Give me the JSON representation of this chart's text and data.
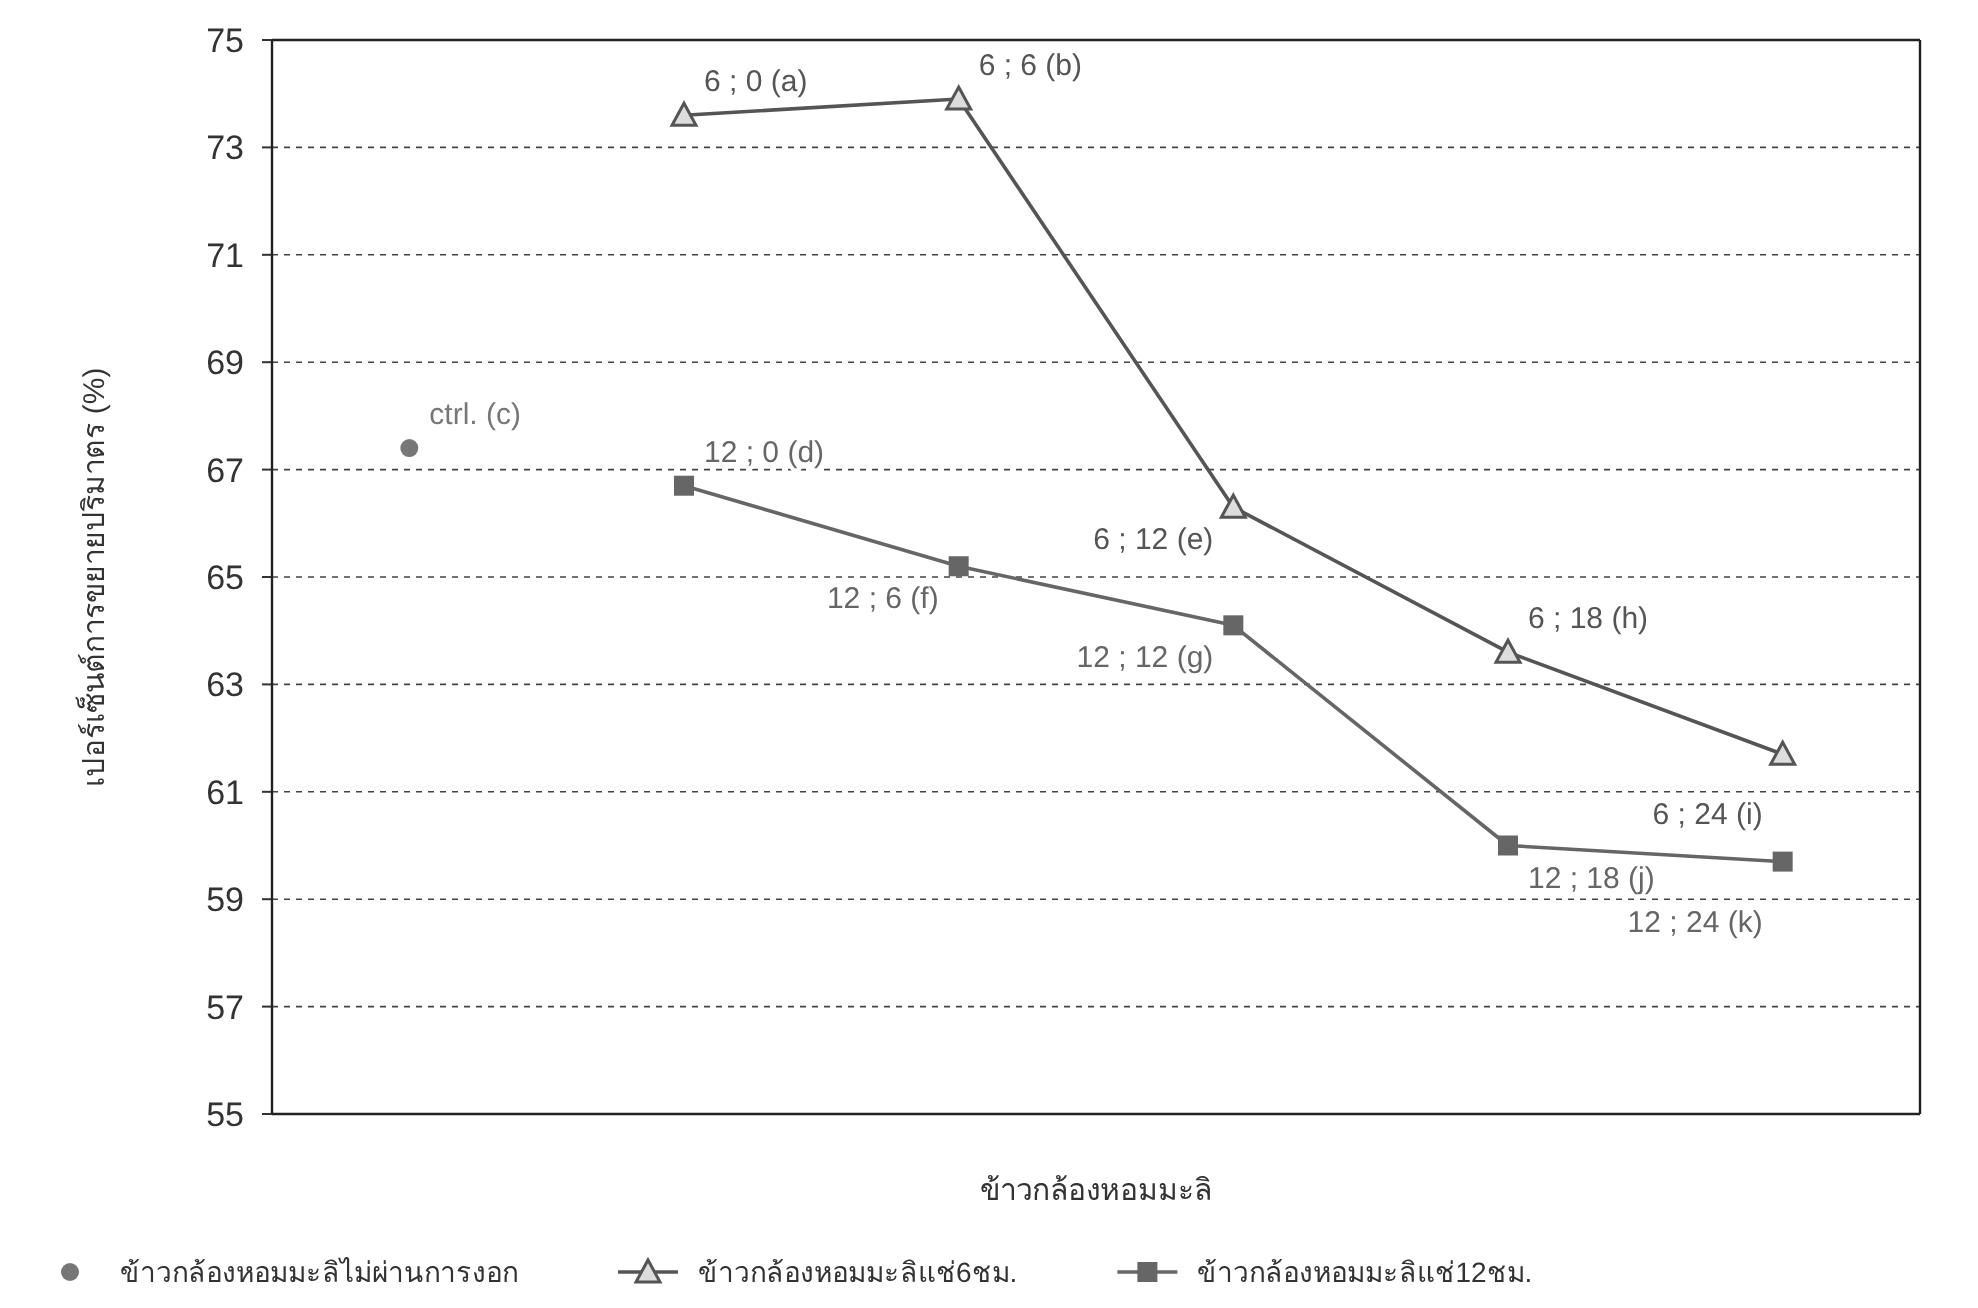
{
  "chart_data": {
    "type": "line",
    "xlabel": "ข้าวกล้องหอมมะลิ",
    "ylabel": "เปอร์เซ็นต์การขยายปริมาตร (%)",
    "categories": [
      null,
      null,
      null,
      null,
      null,
      null
    ],
    "series": [
      {
        "name": "ข้าวกล้องหอมมะลิไม่ผ่านการงอก",
        "type": "scatter",
        "marker": "circle",
        "color": "#777777",
        "values": [
          67.4,
          null,
          null,
          null,
          null,
          null
        ]
      },
      {
        "name": "ข้าวกล้องหอมมะลิแช่6ชม.",
        "type": "line",
        "marker": "triangle",
        "color": "#555555",
        "values": [
          null,
          73.6,
          73.9,
          66.3,
          63.6,
          61.7
        ]
      },
      {
        "name": "ข้าวกล้องหอมมะลิแช่12ชม.",
        "type": "line",
        "marker": "square",
        "color": "#666666",
        "values": [
          null,
          66.7,
          65.2,
          64.1,
          60.0,
          59.7
        ]
      }
    ],
    "annotations": [
      "ctrl. (c)",
      "6 ; 0 (a)",
      "6 ; 6 (b)",
      "6 ; 12 (e)",
      "6 ; 18 (h)",
      "6 ; 24 (i)",
      "12 ; 0 (d)",
      "12 ; 6 (f)",
      "12 ; 12 (g)",
      "12 ; 18 (j)",
      "12 ; 24 (k)"
    ],
    "ylim": [
      55,
      75
    ],
    "yticks": [
      55,
      57,
      59,
      61,
      63,
      65,
      67,
      69,
      71,
      73,
      75
    ],
    "grid": "y",
    "legend": "bottom"
  }
}
